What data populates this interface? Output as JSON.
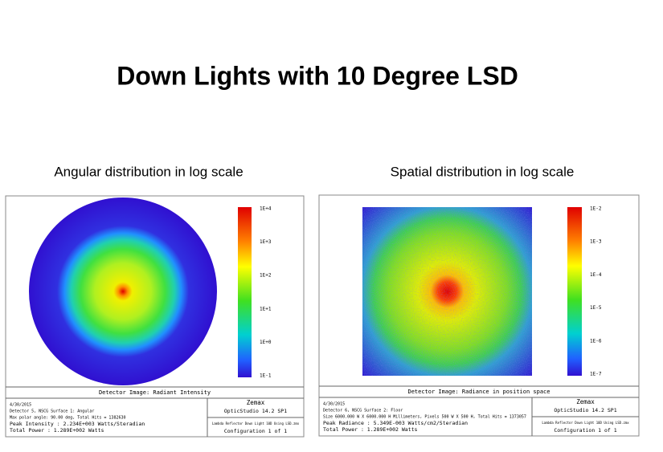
{
  "title": "Down Lights with 10 Degree LSD",
  "panels": [
    {
      "heading": "Angular distribution in log scale",
      "colorbar_labels": [
        "1E+4",
        "1E+3",
        "1E+2",
        "1E+1",
        "1E+0",
        "1E-1"
      ],
      "caption": "Detector Image: Radiant Intensity",
      "info_lines": [
        "4/30/2015",
        "Detector 5, NSCG Surface 1: Angular",
        "Max polar angle: 90.00 deg, Total Hits = 1382630",
        "Peak Intensity : 2.234E+003 Watts/Steradian",
        "Total Power : 1.289E+002 Watts"
      ],
      "brand": "Zemax",
      "software": "OpticStudio 14.2 SP1",
      "file": "Lambda Reflector Down Light 10D Using LSD.zmx",
      "config": "Configuration 1 of 1"
    },
    {
      "heading": "Spatial distribution in log scale",
      "colorbar_labels": [
        "1E-2",
        "1E-3",
        "1E-4",
        "1E-5",
        "1E-6",
        "1E-7"
      ],
      "caption": "Detector Image: Radiance in position space",
      "info_lines": [
        "4/30/2015",
        "Detector 6, NSCG Surface 2: Floor",
        "Size 6000.000 W X 6000.000 H Millimeters, Pixels 500 W X 500 H, Total Hits = 1373057",
        "Peak Radiance : 5.349E-003 Watts/cm2/Steradian",
        "Total Power : 1.289E+002 Watts"
      ],
      "brand": "Zemax",
      "software": "OpticStudio 14.2 SP1",
      "file": "Lambda Reflector Down Light 10D Using LSD.zmx",
      "config": "Configuration 1 of 1"
    }
  ]
}
